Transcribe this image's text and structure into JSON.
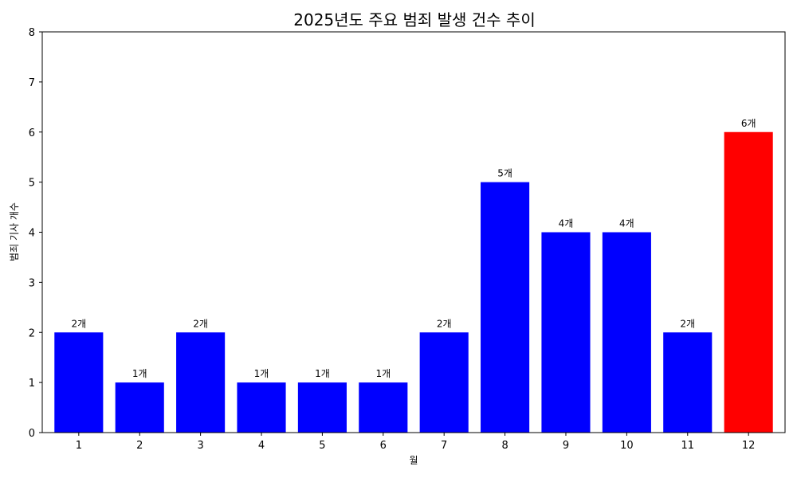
{
  "chart_data": {
    "type": "bar",
    "title": "2025년도 주요 범죄 발생 건수 추이",
    "xlabel": "월",
    "ylabel": "범죄 기사 개수",
    "categories": [
      "1",
      "2",
      "3",
      "4",
      "5",
      "6",
      "7",
      "8",
      "9",
      "10",
      "11",
      "12"
    ],
    "values": [
      2,
      1,
      2,
      1,
      1,
      1,
      2,
      5,
      4,
      4,
      2,
      6
    ],
    "data_labels": [
      "2개",
      "1개",
      "2개",
      "1개",
      "1개",
      "1개",
      "2개",
      "5개",
      "4개",
      "4개",
      "2개",
      "6개"
    ],
    "bar_colors": [
      "#0000ff",
      "#0000ff",
      "#0000ff",
      "#0000ff",
      "#0000ff",
      "#0000ff",
      "#0000ff",
      "#0000ff",
      "#0000ff",
      "#0000ff",
      "#0000ff",
      "#ff0000"
    ],
    "yticks": [
      "0",
      "1",
      "2",
      "3",
      "4",
      "5",
      "6",
      "7",
      "8"
    ],
    "ylim": [
      0,
      8
    ],
    "grid": false,
    "legend": "none"
  }
}
